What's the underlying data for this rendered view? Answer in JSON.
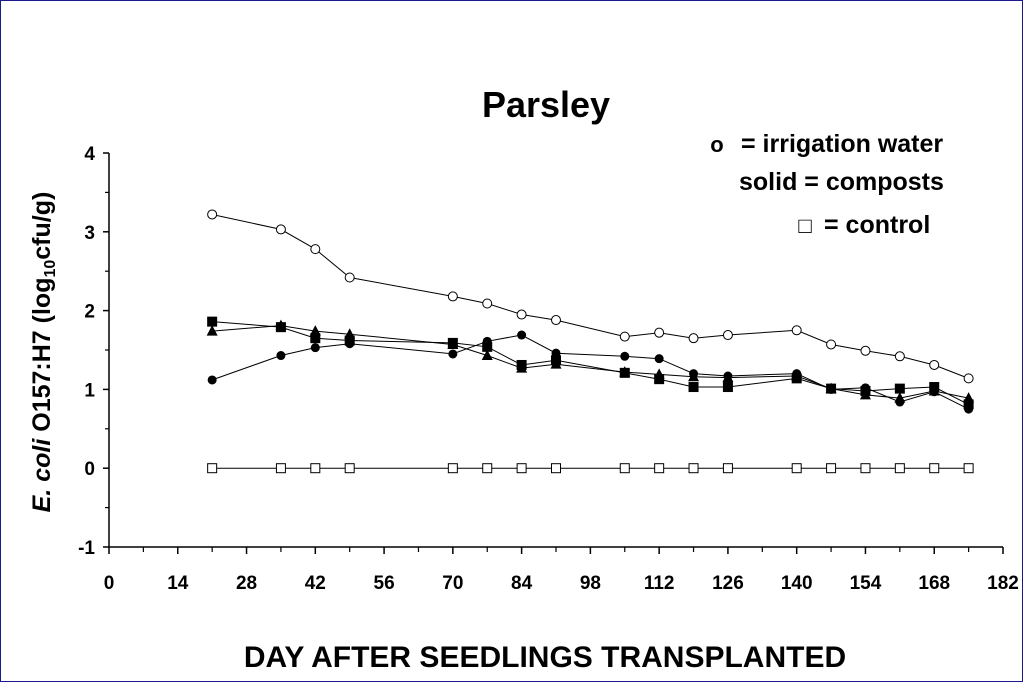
{
  "chart_data": {
    "type": "line",
    "title": "Parsley",
    "ylabel_parts": [
      "E. coli",
      " O157:H7  (log",
      "10",
      "cfu/g)"
    ],
    "xlabel": "DAY AFTER SEEDLINGS TRANSPLANTED",
    "xlim": [
      0,
      182
    ],
    "ylim": [
      -1,
      4
    ],
    "x_ticks": [
      0,
      14,
      28,
      42,
      56,
      70,
      84,
      98,
      112,
      126,
      140,
      154,
      168,
      182
    ],
    "y_ticks": [
      -1,
      0,
      1,
      2,
      3,
      4
    ],
    "legend": {
      "placement": "top-right",
      "lines": [
        {
          "symbol": "o",
          "text": "= irrigation water"
        },
        {
          "symbol": "",
          "text": "solid = composts"
        },
        {
          "symbol": "□",
          "text": "= control"
        }
      ]
    },
    "series": [
      {
        "marker": "open-circle",
        "x": [
          21,
          35,
          42,
          49,
          70,
          77,
          84,
          91,
          105,
          112,
          119,
          126,
          140,
          147,
          154,
          161,
          168,
          175
        ],
        "values": [
          3.22,
          3.03,
          2.78,
          2.42,
          2.18,
          2.09,
          1.95,
          1.88,
          1.67,
          1.72,
          1.65,
          1.69,
          1.75,
          1.57,
          1.49,
          1.42,
          1.31,
          1.14
        ]
      },
      {
        "marker": "filled-circle",
        "x": [
          21,
          35,
          42,
          49,
          70,
          77,
          84,
          91,
          105,
          112,
          119,
          126,
          140,
          147,
          154,
          161,
          168,
          175
        ],
        "values": [
          1.12,
          1.43,
          1.53,
          1.58,
          1.45,
          1.61,
          1.69,
          1.46,
          1.42,
          1.39,
          1.2,
          1.17,
          1.2,
          1.0,
          1.02,
          0.84,
          0.97,
          0.75
        ]
      },
      {
        "marker": "filled-triangle",
        "x": [
          21,
          35,
          42,
          49,
          70,
          77,
          84,
          91,
          105,
          112,
          119,
          126,
          140,
          147,
          154,
          161,
          168,
          175
        ],
        "values": [
          1.74,
          1.81,
          1.74,
          1.7,
          1.57,
          1.43,
          1.27,
          1.32,
          1.22,
          1.19,
          1.16,
          1.15,
          1.17,
          1.01,
          0.93,
          0.89,
          0.98,
          0.89
        ]
      },
      {
        "marker": "filled-square",
        "x": [
          21,
          35,
          42,
          49,
          70,
          77,
          84,
          91,
          105,
          112,
          119,
          126,
          140,
          147,
          154,
          161,
          168,
          175
        ],
        "values": [
          1.86,
          1.79,
          1.65,
          1.62,
          1.59,
          1.54,
          1.31,
          1.37,
          1.21,
          1.13,
          1.03,
          1.03,
          1.14,
          1.01,
          0.98,
          1.01,
          1.03,
          0.81
        ]
      },
      {
        "marker": "open-square",
        "x": [
          21,
          35,
          42,
          49,
          70,
          77,
          84,
          91,
          105,
          112,
          119,
          126,
          140,
          147,
          154,
          161,
          168,
          175
        ],
        "values": [
          0,
          0,
          0,
          0,
          0,
          0,
          0,
          0,
          0,
          0,
          0,
          0,
          0,
          0,
          0,
          0,
          0,
          0
        ]
      }
    ],
    "grid": false
  }
}
